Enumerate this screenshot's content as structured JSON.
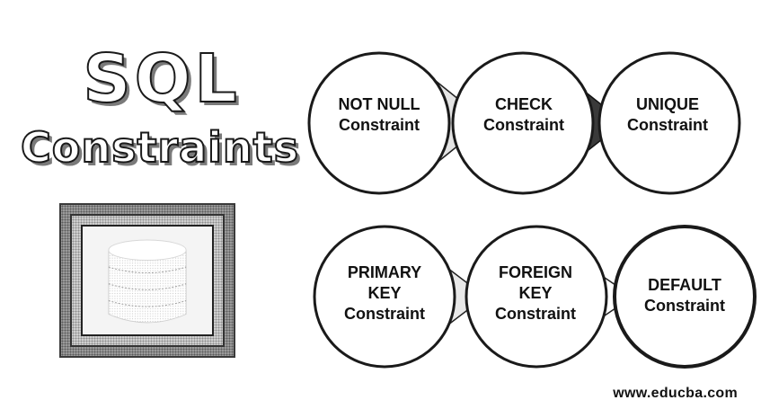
{
  "title": {
    "line1": "SQL",
    "line2": "Constraints"
  },
  "constraints": [
    {
      "label": "NOT NULL\nConstraint"
    },
    {
      "label": "CHECK\nConstraint"
    },
    {
      "label": "UNIQUE\nConstraint"
    },
    {
      "label": "PRIMARY\nKEY\nConstraint"
    },
    {
      "label": "FOREIGN\nKEY\nConstraint"
    },
    {
      "label": "DEFAULT\nConstraint"
    }
  ],
  "icons": {
    "database": "database-icon"
  },
  "watermark": "www.educba.com"
}
